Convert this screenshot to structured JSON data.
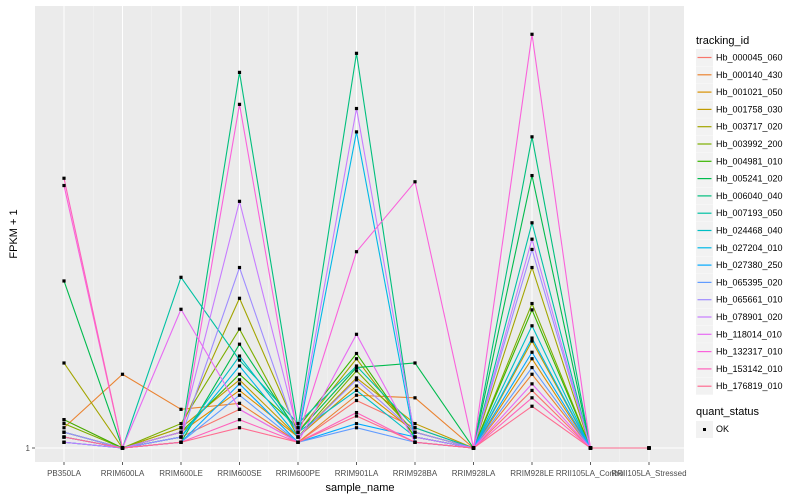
{
  "chart_data": {
    "type": "line",
    "xlabel": "sample_name",
    "ylabel": "FPKM + 1",
    "y_ticks": [
      "1"
    ],
    "categories": [
      "PB350LA",
      "RRIM600LA",
      "RRIM600LE",
      "RRIM600SE",
      "RRIM600PE",
      "RRIM901LA",
      "RRIM928BA",
      "RRIM928LA",
      "RRIM928LE",
      "RRII105LA_Control",
      "RRII105LA_Stressed"
    ],
    "scale": "log",
    "ylim": [
      1,
      1120
    ],
    "grid": true,
    "background": "#ebebeb",
    "legend_position": "right",
    "series": [
      {
        "name": "Hb_000045_060",
        "color": "#F8766D",
        "values": [
          1.6,
          1,
          1.2,
          1.9,
          1.1,
          2.2,
          1.4,
          1,
          2.6,
          1,
          1
        ]
      },
      {
        "name": "Hb_000140_430",
        "color": "#EA8331",
        "values": [
          1.4,
          3.4,
          1.9,
          2.1,
          1.1,
          2.4,
          2.3,
          1,
          3.4,
          1,
          1
        ]
      },
      {
        "name": "Hb_001021_050",
        "color": "#D89000",
        "values": [
          1.2,
          1,
          1.3,
          2.6,
          1.2,
          2.8,
          1.3,
          1,
          4.4,
          1,
          1
        ]
      },
      {
        "name": "Hb_001758_030",
        "color": "#C09B00",
        "values": [
          1.3,
          1,
          1.4,
          3.1,
          1.2,
          3.2,
          1.5,
          1,
          5.9,
          1,
          1
        ]
      },
      {
        "name": "Hb_003717_020",
        "color": "#A3A500",
        "values": [
          4.1,
          1,
          1.4,
          12,
          1.3,
          4.4,
          1.2,
          1,
          20,
          1,
          1
        ]
      },
      {
        "name": "Hb_003992_200",
        "color": "#7CAE00",
        "values": [
          1.5,
          1,
          1.5,
          7.2,
          1.2,
          3.6,
          1.3,
          1,
          11,
          1,
          1
        ]
      },
      {
        "name": "Hb_004981_010",
        "color": "#39B600",
        "values": [
          1.6,
          1,
          1.3,
          3.4,
          1.4,
          4.8,
          1.2,
          1,
          9.9,
          1,
          1
        ]
      },
      {
        "name": "Hb_005241_020",
        "color": "#00BB4E",
        "values": [
          16,
          1,
          1.1,
          5.6,
          1.3,
          3.8,
          4.1,
          1,
          92,
          1,
          1
        ]
      },
      {
        "name": "Hb_006040_040",
        "color": "#00BF7D",
        "values": [
          1.3,
          1,
          1.2,
          510,
          1.4,
          700,
          1.1,
          1,
          175,
          1,
          1
        ]
      },
      {
        "name": "Hb_007193_050",
        "color": "#00C1A3",
        "values": [
          1.1,
          1,
          17,
          4.3,
          1.5,
          3.9,
          1.4,
          1,
          42,
          1,
          1
        ]
      },
      {
        "name": "Hb_024468_040",
        "color": "#00BFC4",
        "values": [
          1.2,
          1,
          1.2,
          4.6,
          1.3,
          2.6,
          1.2,
          1,
          7.6,
          1,
          1
        ]
      },
      {
        "name": "Hb_027204_010",
        "color": "#00B8E7",
        "values": [
          1.1,
          1,
          1.2,
          3.9,
          1.2,
          190,
          1.1,
          1,
          6.2,
          1,
          1
        ]
      },
      {
        "name": "Hb_027380_250",
        "color": "#00A9FF",
        "values": [
          1.2,
          1,
          1.1,
          2.9,
          1.1,
          1.5,
          1.2,
          1,
          4.9,
          1,
          1
        ]
      },
      {
        "name": "Hb_065395_020",
        "color": "#619CFF",
        "values": [
          1.1,
          1,
          1.1,
          2.4,
          1.1,
          1.4,
          1.1,
          1,
          3.8,
          1,
          1
        ]
      },
      {
        "name": "Hb_065661_010",
        "color": "#9F8CFF",
        "values": [
          1.3,
          1,
          1.2,
          20,
          1.2,
          3.1,
          1.3,
          1,
          27,
          1,
          1
        ]
      },
      {
        "name": "Hb_078901_020",
        "color": "#C77CFF",
        "values": [
          1.1,
          1,
          1.3,
          60,
          1.3,
          280,
          1.2,
          1,
          32,
          1,
          1
        ]
      },
      {
        "name": "Hb_118014_010",
        "color": "#E76BF3",
        "values": [
          1.2,
          1,
          10,
          1.9,
          1.1,
          6.6,
          1.1,
          1,
          2.9,
          1,
          1
        ]
      },
      {
        "name": "Hb_132317_010",
        "color": "#FA62DB",
        "values": [
          78,
          1,
          1.1,
          300,
          1.2,
          26,
          83,
          1,
          960,
          1,
          1
        ]
      },
      {
        "name": "Hb_153142_010",
        "color": "#FF62BC",
        "values": [
          88,
          1,
          1.1,
          1.6,
          1.1,
          1.8,
          1.1,
          1,
          2.3,
          1,
          1
        ]
      },
      {
        "name": "Hb_176819_010",
        "color": "#FF6C91",
        "values": [
          1.2,
          1,
          1.1,
          1.4,
          1.1,
          1.7,
          1.1,
          1,
          2.0,
          1,
          1
        ]
      }
    ],
    "legend_title": "tracking_id",
    "quant_legend_title": "quant_status",
    "quant_legend_item": "OK"
  }
}
